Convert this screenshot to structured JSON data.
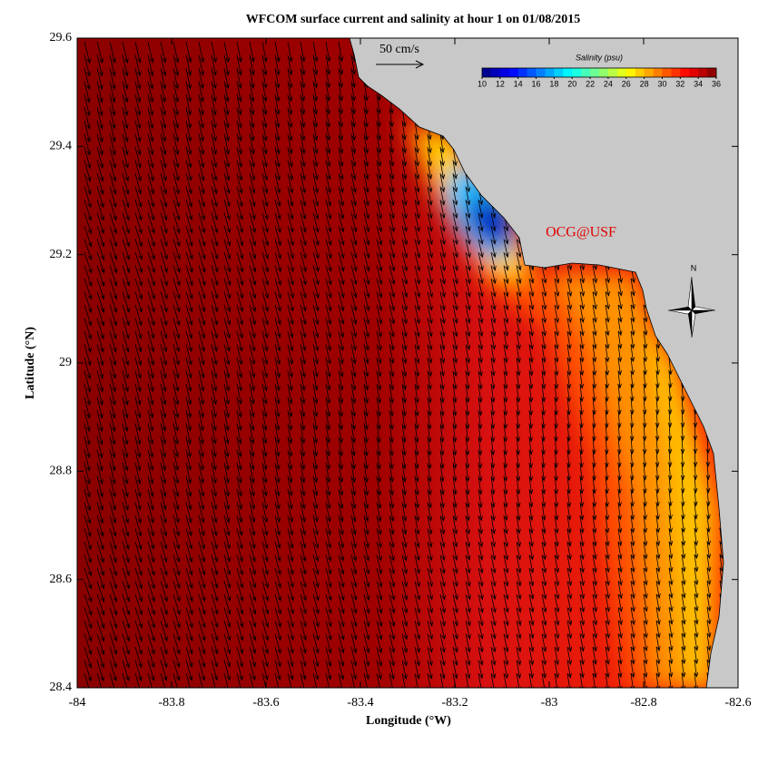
{
  "chart_data": {
    "type": "map",
    "title": "WFCOM surface current and salinity at hour 1 on 01/08/2015",
    "xlabel": "Longitude (°W)",
    "ylabel": "Latitude (°N)",
    "xlim": [
      -84,
      -82.6
    ],
    "ylim": [
      28.4,
      29.6
    ],
    "xticks": [
      -84,
      -83.8,
      -83.6,
      -83.4,
      -83.2,
      -83,
      -82.8,
      -82.6
    ],
    "yticks": [
      28.4,
      28.6,
      28.8,
      29,
      29.2,
      29.4,
      29.6
    ],
    "colorbar": {
      "label": "Salinity (psu)",
      "lim": [
        10,
        36
      ],
      "ticks": [
        10,
        12,
        14,
        16,
        18,
        20,
        22,
        24,
        26,
        28,
        30,
        32,
        34,
        36
      ],
      "colormap": "jet"
    },
    "scale_label": "50 cm/s",
    "watermark": "OCG@USF",
    "north_label": "N"
  }
}
